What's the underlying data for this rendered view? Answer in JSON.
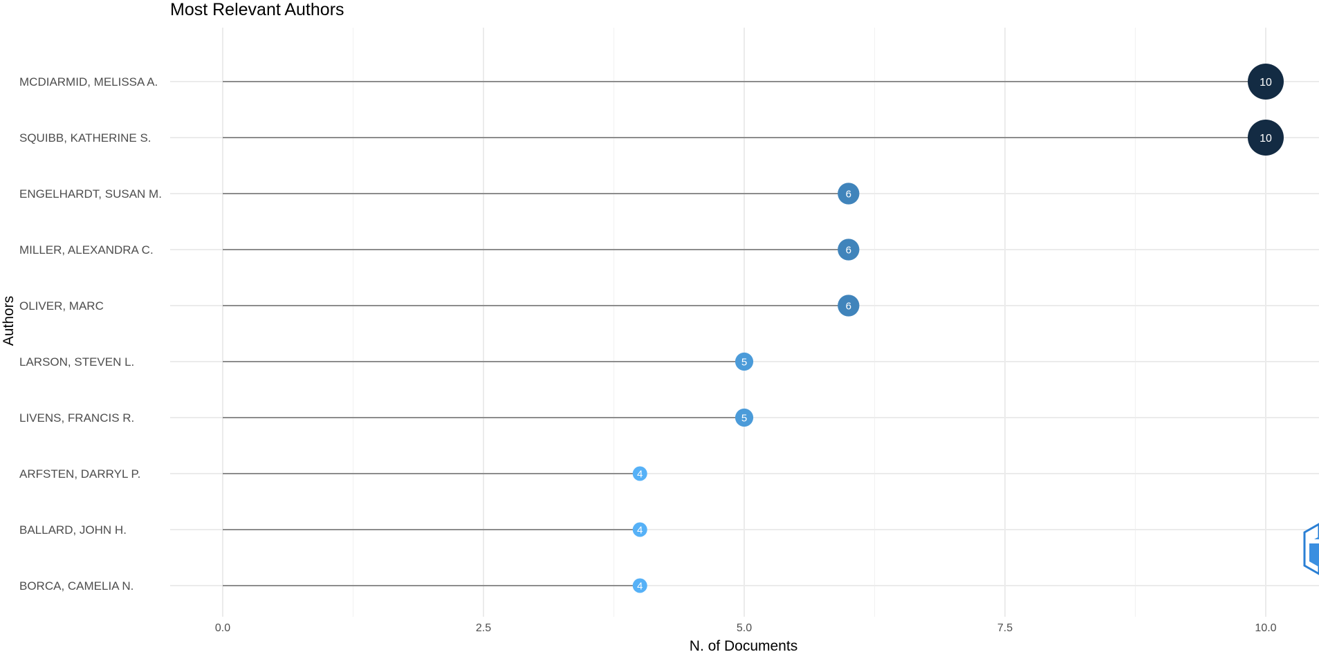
{
  "chart_data": {
    "type": "lollipop",
    "title": "Most Relevant Authors",
    "xlabel": "N. of Documents",
    "ylabel": "Authors",
    "xlim": [
      0,
      10
    ],
    "x_ticks": [
      "0.0",
      "2.5",
      "5.0",
      "7.5",
      "10.0"
    ],
    "grid": true,
    "color_scale": {
      "low": "#56B1F7",
      "high": "#132B43"
    },
    "authors": [
      {
        "name": "MCDIARMID, MELISSA A.",
        "value": 10,
        "label": "10"
      },
      {
        "name": "SQUIBB, KATHERINE S.",
        "value": 10,
        "label": "10"
      },
      {
        "name": "ENGELHARDT, SUSAN M.",
        "value": 6,
        "label": "6"
      },
      {
        "name": "MILLER, ALEXANDRA C.",
        "value": 6,
        "label": "6"
      },
      {
        "name": "OLIVER, MARC",
        "value": 6,
        "label": "6"
      },
      {
        "name": "LARSON, STEVEN L.",
        "value": 5,
        "label": "5"
      },
      {
        "name": "LIVENS, FRANCIS R.",
        "value": 5,
        "label": "5"
      },
      {
        "name": "ARFSTEN, DARRYL P.",
        "value": 4,
        "label": "4"
      },
      {
        "name": "BALLARD, JOHN H.",
        "value": 4,
        "label": "4"
      },
      {
        "name": "BORCA, CAMELIA N.",
        "value": 4,
        "label": "4"
      }
    ]
  }
}
